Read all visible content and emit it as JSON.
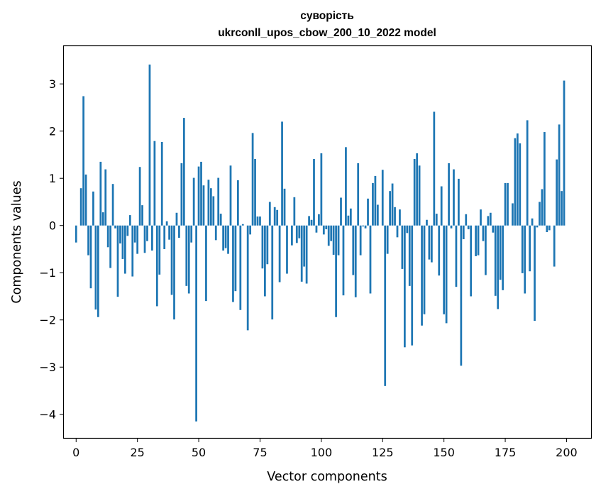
{
  "chart_data": {
    "type": "bar",
    "title": [
      "суворість",
      "ukrconll_upos_cbow_200_10_2022 model"
    ],
    "xlabel": "Vector components",
    "ylabel": "Components values",
    "xlim": [
      -5,
      210
    ],
    "ylim": [
      -4.5,
      3.8
    ],
    "x_ticks": [
      0,
      25,
      50,
      75,
      100,
      125,
      150,
      175,
      200
    ],
    "y_ticks": [
      -4,
      -3,
      -2,
      -1,
      0,
      1,
      2,
      3
    ],
    "grid": false,
    "bar_color": "#1f77b4",
    "values": [
      -0.36,
      0.0,
      0.79,
      2.74,
      1.08,
      -0.63,
      -1.33,
      0.72,
      -1.78,
      -1.94,
      1.35,
      0.28,
      1.19,
      -0.46,
      -0.9,
      0.88,
      -0.06,
      -1.51,
      -0.38,
      -0.71,
      -1.02,
      -0.22,
      0.22,
      -1.08,
      -0.36,
      -0.6,
      1.24,
      0.43,
      -0.58,
      -0.33,
      3.41,
      -0.53,
      1.79,
      -1.71,
      -1.04,
      1.77,
      -0.5,
      0.09,
      -0.3,
      -1.47,
      -1.99,
      0.27,
      -0.26,
      1.32,
      2.28,
      -1.28,
      -1.44,
      -0.36,
      1.01,
      -4.15,
      1.25,
      1.35,
      0.85,
      -1.6,
      0.97,
      0.79,
      0.62,
      -0.31,
      1.01,
      0.25,
      -0.53,
      -0.48,
      -0.6,
      1.27,
      -1.62,
      -1.39,
      0.96,
      -1.79,
      0.03,
      0.0,
      -2.22,
      -0.19,
      1.96,
      1.41,
      0.19,
      0.19,
      -0.91,
      -1.5,
      -0.82,
      0.5,
      -1.99,
      0.39,
      0.33,
      -1.2,
      2.2,
      0.78,
      -1.02,
      0.0,
      -0.42,
      0.6,
      -0.37,
      -0.27,
      -1.19,
      -0.87,
      -1.23,
      0.2,
      0.12,
      1.41,
      -0.15,
      0.24,
      1.53,
      -0.19,
      -0.08,
      -0.43,
      -0.33,
      -0.62,
      -1.94,
      -0.63,
      0.59,
      -1.48,
      1.66,
      0.21,
      0.36,
      -1.05,
      -1.52,
      1.32,
      -0.63,
      -0.02,
      -0.06,
      0.57,
      -1.44,
      0.9,
      1.05,
      0.44,
      0.0,
      1.18,
      -3.4,
      -0.6,
      0.73,
      0.89,
      0.39,
      -0.25,
      0.34,
      -0.92,
      -2.58,
      -0.16,
      -1.28,
      -2.54,
      1.41,
      1.53,
      1.27,
      -2.12,
      -1.88,
      0.12,
      -0.72,
      -0.78,
      2.41,
      0.25,
      -1.06,
      0.83,
      -1.88,
      -2.07,
      1.32,
      -0.06,
      1.19,
      -1.3,
      0.99,
      -2.97,
      -0.29,
      0.24,
      -0.08,
      -1.5,
      0.0,
      -0.65,
      -0.63,
      0.34,
      -0.33,
      -1.05,
      0.2,
      0.27,
      -0.15,
      -1.49,
      -1.77,
      -1.15,
      -1.37,
      0.9,
      0.9,
      0.0,
      0.47,
      1.85,
      1.95,
      1.74,
      -1.01,
      -1.44,
      2.23,
      -0.97,
      0.15,
      -2.02,
      -0.04,
      0.5,
      0.77,
      1.98,
      -0.14,
      -0.1,
      0.0,
      -0.87,
      1.4,
      2.14,
      0.73,
      3.07
    ]
  }
}
